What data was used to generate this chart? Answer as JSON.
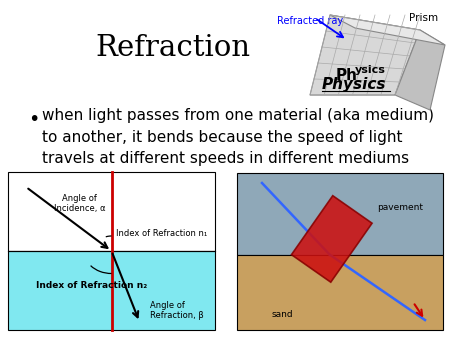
{
  "bg_color": "#ffffff",
  "title": "Refraction",
  "bullet_text": "when light passes from one material (aka medium)\nto another, it bends because the speed of light\ntravels at different speeds in different mediums",
  "prism_label": "Prism",
  "refracted_label": "Refracted ray",
  "label_n1": "Index of Refraction n₁",
  "label_n2": "Index of Refraction n₂",
  "label_angle_inc": "Angle of\nIncidence, α",
  "label_angle_ref": "Angle of\nRefraction, β",
  "top_color": "#ffffff",
  "bottom_color": "#80e8f0",
  "pavement_color": "#9a9a9a",
  "sand_color": "#c8a060",
  "label_pavement": "pavement",
  "label_sand": "sand"
}
